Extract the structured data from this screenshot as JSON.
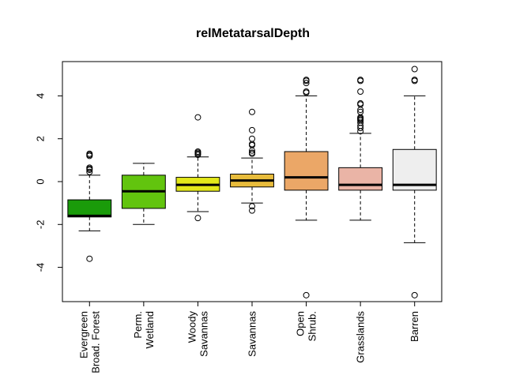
{
  "chart_data": {
    "type": "boxplot",
    "title": "relMetatarsalDepth",
    "xlabel": "",
    "ylabel": "",
    "ylim": [
      -5.6,
      5.6
    ],
    "yticks": [
      -4,
      -2,
      0,
      2,
      4
    ],
    "ytick_labels": [
      "-4",
      "-2",
      "0",
      "2",
      "4"
    ],
    "grid": false,
    "categories": [
      [
        "Evergreen",
        "Broad. Forest"
      ],
      [
        "Perm.",
        "Wetland"
      ],
      [
        "Woody",
        "Savannas"
      ],
      [
        "Savannas"
      ],
      [
        "Open",
        "Shrub."
      ],
      [
        "Grasslands"
      ],
      [
        "Barren"
      ]
    ],
    "boxes": [
      {
        "color": "#1a9b0a",
        "whisker_low": -2.3,
        "q1": -1.65,
        "median": -1.6,
        "q3": -0.85,
        "whisker_high": 0.3,
        "outliers": [
          -3.6,
          0.45,
          0.55,
          0.6,
          0.65,
          1.2,
          1.25,
          1.3
        ]
      },
      {
        "color": "#62c40e",
        "whisker_low": -2.0,
        "q1": -1.25,
        "median": -0.45,
        "q3": 0.3,
        "whisker_high": 0.85,
        "outliers": []
      },
      {
        "color": "#e3e81a",
        "whisker_low": -1.4,
        "q1": -0.45,
        "median": -0.15,
        "q3": 0.2,
        "whisker_high": 1.15,
        "outliers": [
          -1.7,
          1.25,
          1.3,
          1.35,
          1.4,
          3.0
        ]
      },
      {
        "color": "#e8bc3c",
        "whisker_low": -1.0,
        "q1": -0.25,
        "median": 0.05,
        "q3": 0.35,
        "whisker_high": 1.1,
        "outliers": [
          -1.35,
          -1.15,
          1.3,
          1.35,
          1.45,
          1.7,
          1.75,
          2.0,
          2.4,
          3.25
        ]
      },
      {
        "color": "#eba767",
        "whisker_low": -1.8,
        "q1": -0.4,
        "median": 0.2,
        "q3": 1.4,
        "whisker_high": 4.0,
        "outliers": [
          -5.3,
          4.15,
          4.2,
          4.6,
          4.7,
          4.75
        ]
      },
      {
        "color": "#eab4a6",
        "whisker_low": -1.8,
        "q1": -0.4,
        "median": -0.15,
        "q3": 0.65,
        "whisker_high": 2.25,
        "outliers": [
          2.35,
          2.5,
          2.6,
          2.75,
          2.85,
          2.9,
          2.95,
          3.0,
          3.25,
          3.35,
          3.6,
          3.65,
          4.2,
          4.7,
          4.75
        ]
      },
      {
        "color": "#eeeeee",
        "whisker_low": -2.85,
        "q1": -0.4,
        "median": -0.15,
        "q3": 1.5,
        "whisker_high": 4.0,
        "outliers": [
          -5.3,
          4.7,
          4.75,
          5.25
        ]
      }
    ]
  }
}
